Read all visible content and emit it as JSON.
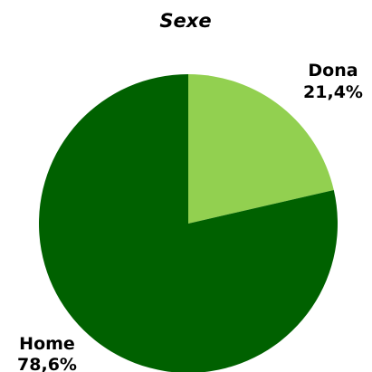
{
  "chart_data": {
    "type": "pie",
    "title": "Sexe",
    "categories": [
      "Dona",
      "Home"
    ],
    "values": [
      21.4,
      78.6
    ],
    "value_labels": [
      "21,4%",
      "78,6%"
    ],
    "colors": [
      "#92d050",
      "#006100"
    ],
    "start_angle": "12 o'clock, clockwise",
    "legend": "none"
  }
}
